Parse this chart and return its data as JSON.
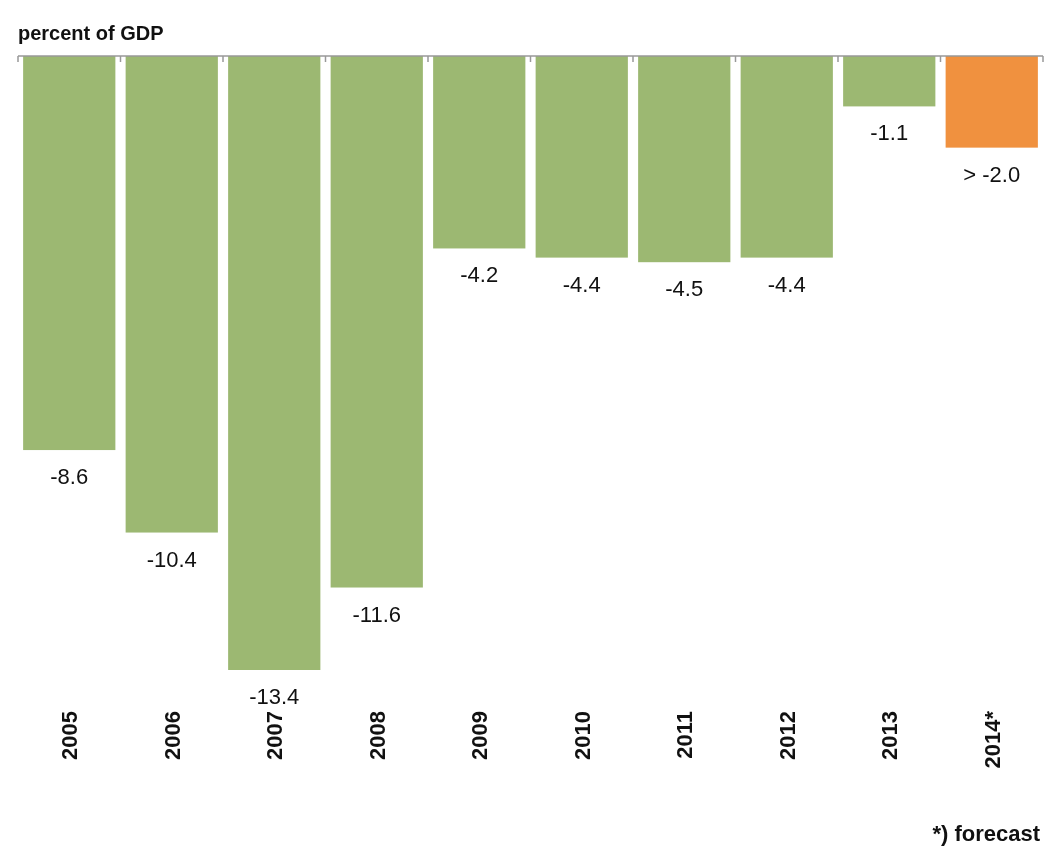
{
  "chart_data": {
    "type": "bar",
    "title": "percent of GDP",
    "categories": [
      "2005",
      "2006",
      "2007",
      "2008",
      "2009",
      "2010",
      "2011",
      "2012",
      "2013",
      "2014*"
    ],
    "values": [
      -8.6,
      -10.4,
      -13.4,
      -11.6,
      -4.2,
      -4.4,
      -4.5,
      -4.4,
      -1.1,
      -2.0
    ],
    "colors": [
      "#9cb872",
      "#9cb872",
      "#9cb872",
      "#9cb872",
      "#9cb872",
      "#9cb872",
      "#9cb872",
      "#9cb872",
      "#9cb872",
      "#f0913f"
    ],
    "value_labels": [
      "-8.6",
      "-10.4",
      "-13.4",
      "-11.6",
      "-4.2",
      "-4.4",
      "-4.5",
      "-4.4",
      "-1.1",
      "> -2.0"
    ],
    "annotations": [
      "*) forecast"
    ]
  }
}
